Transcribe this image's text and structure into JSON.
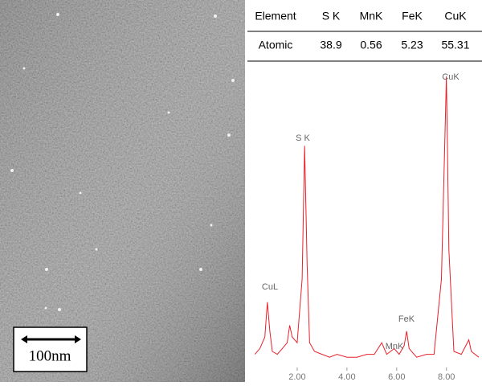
{
  "image": {
    "scale_bar": "100nm"
  },
  "table": {
    "header": [
      "Element",
      "S K",
      "MnK",
      "FeK",
      "CuK"
    ],
    "rows": [
      [
        "Atomic",
        "38.9",
        "0.56",
        "5.23",
        "55.31"
      ]
    ]
  },
  "chart_data": {
    "type": "line",
    "color": "#e8202a",
    "x": [
      0.3,
      0.5,
      0.7,
      0.8,
      0.9,
      1.0,
      1.2,
      1.4,
      1.6,
      1.7,
      1.8,
      2.0,
      2.2,
      2.3,
      2.4,
      2.5,
      2.7,
      3.0,
      3.3,
      3.6,
      4.0,
      4.4,
      4.8,
      5.1,
      5.4,
      5.6,
      5.9,
      6.1,
      6.3,
      6.4,
      6.5,
      6.8,
      7.2,
      7.5,
      7.8,
      8.0,
      8.1,
      8.3,
      8.6,
      8.9,
      9.0,
      9.3
    ],
    "values": [
      4,
      6,
      10,
      22,
      12,
      5,
      4,
      6,
      8,
      14,
      10,
      8,
      30,
      76,
      35,
      8,
      5,
      4,
      3,
      4,
      3,
      3,
      4,
      4,
      8,
      4,
      6,
      4,
      7,
      12,
      6,
      3,
      4,
      4,
      30,
      100,
      40,
      5,
      4,
      9,
      5,
      3
    ],
    "xlim": [
      0,
      9.3
    ],
    "ylim": [
      0,
      100
    ],
    "xticks": [
      {
        "value": 2,
        "label": "2.00"
      },
      {
        "value": 4,
        "label": "4.00"
      },
      {
        "value": 6,
        "label": "6.00"
      },
      {
        "value": 8,
        "label": "8.00"
      }
    ],
    "annotations": [
      "S K",
      "CuK",
      "CuL",
      "FeK",
      "MnK"
    ]
  }
}
